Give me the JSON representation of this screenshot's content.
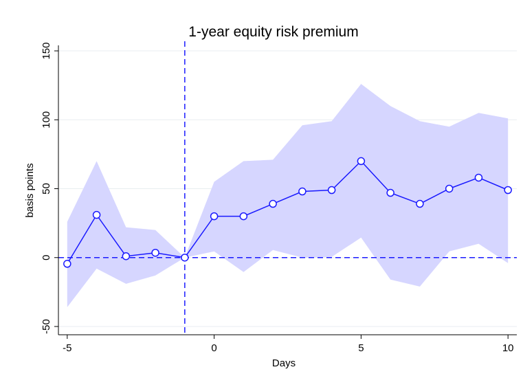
{
  "chart_data": {
    "type": "line",
    "title": "1-year equity risk premium",
    "xlabel": "Days",
    "ylabel": "basis points",
    "x": [
      -5,
      -4,
      -3,
      -2,
      -1,
      0,
      1,
      2,
      3,
      4,
      5,
      6,
      7,
      8,
      9,
      10
    ],
    "values": [
      -4.5,
      31,
      1,
      3.5,
      0,
      30,
      30,
      39,
      48,
      49,
      70,
      47,
      39,
      50,
      58,
      49
    ],
    "upper": [
      26,
      70,
      22,
      20,
      0,
      55,
      70,
      71,
      96,
      99,
      126,
      110,
      99,
      95,
      105,
      101
    ],
    "lower": [
      -36,
      -8,
      -19,
      -13,
      0,
      4.5,
      -10.5,
      5.5,
      0,
      0.5,
      14.5,
      -16,
      -21,
      4.5,
      10,
      -4
    ],
    "color": "#1a1aff",
    "band_color": "#d6d6ff",
    "xlim": [
      -5.3,
      10.3
    ],
    "ylim": [
      -56,
      154
    ],
    "xticks": [
      -5,
      0,
      5,
      10
    ],
    "yticks": [
      -50,
      0,
      50,
      100,
      150
    ],
    "hline": 0,
    "vline": -1,
    "grid": true
  }
}
